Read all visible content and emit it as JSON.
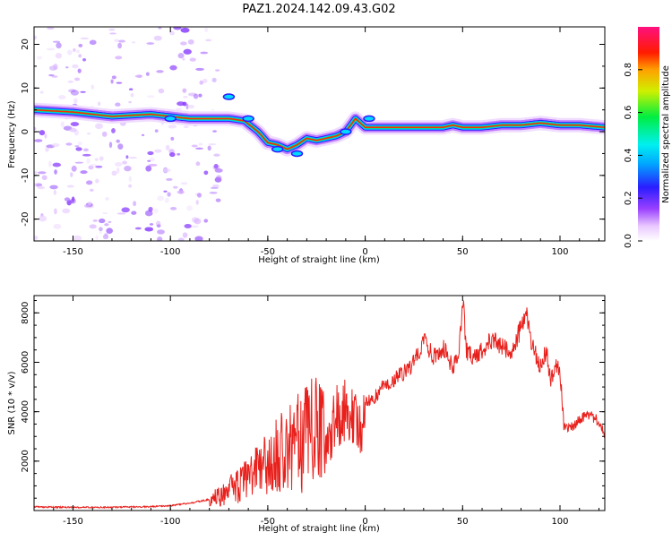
{
  "title": "PAZ1.2024.142.09.43.G02",
  "colors": {
    "snr_line": "#e8201c",
    "axis": "#000000",
    "background": "#ffffff"
  },
  "chart_data": [
    {
      "type": "heatmap",
      "name": "spectrogram",
      "xlabel": "Height of straight line (km)",
      "ylabel": "Frequency (Hz)",
      "xlim": [
        -170,
        123
      ],
      "ylim": [
        -25,
        24
      ],
      "xticks": [
        -150,
        -100,
        -50,
        0,
        50,
        100
      ],
      "yticks": [
        -20,
        -10,
        0,
        10,
        20
      ],
      "colormap": "rainbow-like (white/violet -> blue -> cyan -> green -> yellow -> red -> magenta)",
      "ridge": {
        "description": "dominant frequency ridge (Hz) vs height (km)",
        "x": [
          -170,
          -150,
          -130,
          -110,
          -100,
          -90,
          -80,
          -70,
          -62,
          -55,
          -50,
          -45,
          -40,
          -35,
          -30,
          -25,
          -20,
          -15,
          -10,
          -5,
          0,
          10,
          20,
          30,
          40,
          45,
          50,
          60,
          70,
          80,
          90,
          100,
          110,
          123
        ],
        "y": [
          5,
          4.5,
          3.5,
          4,
          3.5,
          3,
          3,
          3,
          2.5,
          0,
          -2.5,
          -3,
          -4,
          -3,
          -1.5,
          -2,
          -1.5,
          -1,
          0,
          3,
          1,
          1,
          1,
          1,
          1,
          1.5,
          1,
          1,
          1.5,
          1.5,
          2,
          1.5,
          1.5,
          1
        ]
      },
      "colorbar": {
        "label": "Normalized spectral amplitude",
        "range": [
          0,
          1
        ],
        "ticks": [
          "0.0",
          "0.2",
          "0.4",
          "0.6",
          "0.8"
        ]
      }
    },
    {
      "type": "line",
      "name": "snr",
      "xlabel": "Height of straight line (km)",
      "ylabel": "SNR (10 * v/v)",
      "xlim": [
        -170,
        123
      ],
      "ylim": [
        0,
        8700
      ],
      "xticks": [
        -150,
        -100,
        -50,
        0,
        50,
        100
      ],
      "yticks": [
        2000,
        4000,
        6000,
        8000
      ],
      "series": [
        {
          "x": [
            -170,
            -150,
            -130,
            -110,
            -100,
            -90,
            -80,
            -75,
            -70,
            -65,
            -60,
            -55,
            -50,
            -45,
            -40,
            -35,
            -30,
            -25,
            -22,
            -20,
            -18,
            -15,
            -10,
            -5,
            -2,
            0,
            5,
            10,
            15,
            20,
            25,
            30,
            35,
            40,
            45,
            48,
            50,
            52,
            55,
            60,
            65,
            70,
            75,
            80,
            83,
            85,
            90,
            93,
            95,
            98,
            100,
            102,
            105,
            110,
            115,
            120,
            123
          ],
          "y": [
            150,
            130,
            130,
            160,
            200,
            300,
            450,
            600,
            800,
            1000,
            1300,
            1600,
            1900,
            2200,
            2400,
            2700,
            3000,
            3200,
            3100,
            2400,
            3000,
            3800,
            4300,
            3800,
            3000,
            4300,
            4600,
            5100,
            5300,
            5600,
            6000,
            6900,
            6200,
            6600,
            5800,
            6200,
            8600,
            6500,
            6200,
            6500,
            6900,
            6700,
            6300,
            7400,
            7900,
            6800,
            5800,
            6500,
            5300,
            5800,
            5700,
            3400,
            3300,
            3700,
            3900,
            3600,
            3100
          ]
        }
      ]
    }
  ]
}
